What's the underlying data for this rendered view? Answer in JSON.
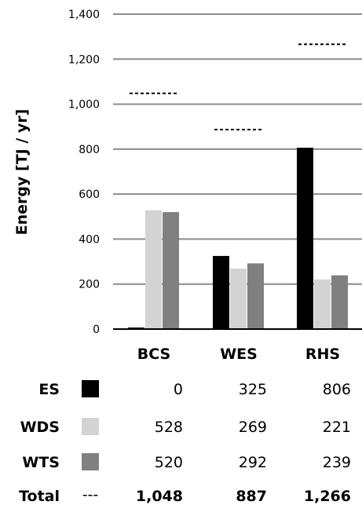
{
  "chart_data": {
    "type": "bar",
    "ylabel": "Energy [TJ / yr]",
    "ylim": [
      0,
      1400
    ],
    "yticks": [
      "0",
      "200",
      "400",
      "600",
      "800",
      "1,000",
      "1,200",
      "1,400"
    ],
    "grid": true,
    "categories": [
      "BCS",
      "WES",
      "RHS"
    ],
    "series": [
      {
        "name": "ES",
        "color": "#000000",
        "values": [
          0,
          325,
          806
        ]
      },
      {
        "name": "WDS",
        "color": "#d3d3d3",
        "values": [
          528,
          269,
          221
        ]
      },
      {
        "name": "WTS",
        "color": "#808080",
        "values": [
          520,
          292,
          239
        ]
      }
    ],
    "total": {
      "name": "Total",
      "symbol": "---",
      "values": [
        1048,
        887,
        1266
      ]
    },
    "table": {
      "rows": [
        {
          "label": "ES",
          "cells": [
            "0",
            "325",
            "806"
          ]
        },
        {
          "label": "WDS",
          "cells": [
            "528",
            "269",
            "221"
          ]
        },
        {
          "label": "WTS",
          "cells": [
            "520",
            "292",
            "239"
          ]
        }
      ],
      "total_row": {
        "label": "Total",
        "cells": [
          "1,048",
          "887",
          "1,266"
        ]
      }
    }
  }
}
